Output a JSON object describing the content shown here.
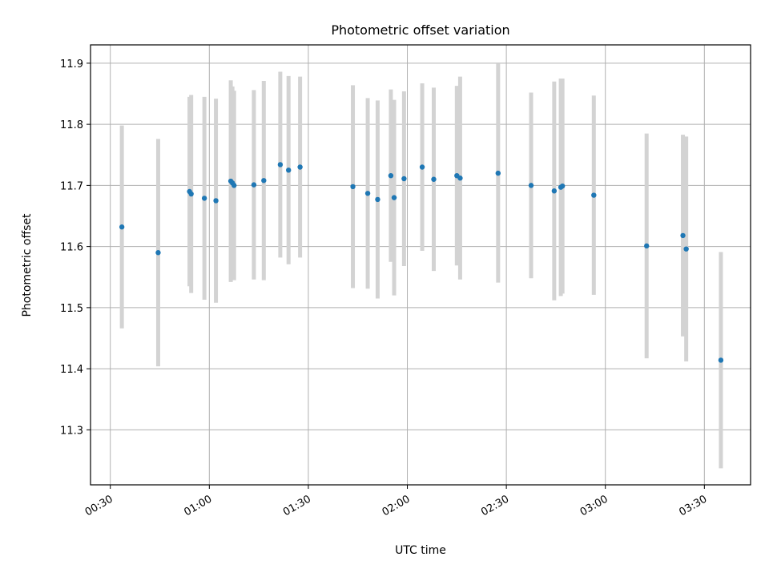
{
  "chart_data": {
    "type": "scatter",
    "title": "Photometric offset variation",
    "xlabel": "UTC time",
    "ylabel": "Photometric offset",
    "x_ticks": [
      "00:30",
      "01:00",
      "01:30",
      "02:00",
      "02:30",
      "03:00",
      "03:30"
    ],
    "y_ticks": [
      "11.3",
      "11.4",
      "11.5",
      "11.6",
      "11.7",
      "11.8",
      "11.9"
    ],
    "xlim": [
      "00:24",
      "03:44"
    ],
    "ylim": [
      11.21,
      11.93
    ],
    "grid": true,
    "colors": {
      "points": "#1f77b4",
      "error_bars": "#d3d3d3"
    },
    "series": [
      {
        "points": [
          {
            "x": "00:33:30",
            "y": 11.632,
            "err": 0.166
          },
          {
            "x": "00:44:30",
            "y": 11.59,
            "err": 0.186
          },
          {
            "x": "00:54:00",
            "y": 11.69,
            "err": 0.155
          },
          {
            "x": "00:54:30",
            "y": 11.686,
            "err": 0.162
          },
          {
            "x": "00:58:30",
            "y": 11.679,
            "err": 0.166
          },
          {
            "x": "01:02:00",
            "y": 11.675,
            "err": 0.167
          },
          {
            "x": "01:06:30",
            "y": 11.707,
            "err": 0.165
          },
          {
            "x": "01:07:00",
            "y": 11.704,
            "err": 0.158
          },
          {
            "x": "01:07:30",
            "y": 11.7,
            "err": 0.155
          },
          {
            "x": "01:13:30",
            "y": 11.701,
            "err": 0.155
          },
          {
            "x": "01:16:30",
            "y": 11.708,
            "err": 0.163
          },
          {
            "x": "01:21:30",
            "y": 11.734,
            "err": 0.152
          },
          {
            "x": "01:24:00",
            "y": 11.725,
            "err": 0.154
          },
          {
            "x": "01:27:30",
            "y": 11.73,
            "err": 0.148
          },
          {
            "x": "01:43:30",
            "y": 11.698,
            "err": 0.166
          },
          {
            "x": "01:48:00",
            "y": 11.687,
            "err": 0.156
          },
          {
            "x": "01:51:00",
            "y": 11.677,
            "err": 0.162
          },
          {
            "x": "01:55:00",
            "y": 11.716,
            "err": 0.141
          },
          {
            "x": "01:56:00",
            "y": 11.68,
            "err": 0.16
          },
          {
            "x": "01:59:00",
            "y": 11.711,
            "err": 0.143
          },
          {
            "x": "02:04:30",
            "y": 11.73,
            "err": 0.137
          },
          {
            "x": "02:08:00",
            "y": 11.71,
            "err": 0.15
          },
          {
            "x": "02:15:00",
            "y": 11.716,
            "err": 0.147
          },
          {
            "x": "02:16:00",
            "y": 11.712,
            "err": 0.166
          },
          {
            "x": "02:27:30",
            "y": 11.72,
            "err": 0.179
          },
          {
            "x": "02:37:30",
            "y": 11.7,
            "err": 0.152
          },
          {
            "x": "02:44:30",
            "y": 11.691,
            "err": 0.179
          },
          {
            "x": "02:46:30",
            "y": 11.697,
            "err": 0.178
          },
          {
            "x": "02:47:00",
            "y": 11.699,
            "err": 0.176
          },
          {
            "x": "02:56:30",
            "y": 11.684,
            "err": 0.163
          },
          {
            "x": "03:12:30",
            "y": 11.601,
            "err": 0.184
          },
          {
            "x": "03:23:30",
            "y": 11.618,
            "err": 0.165
          },
          {
            "x": "03:24:30",
            "y": 11.596,
            "err": 0.184
          },
          {
            "x": "03:35:00",
            "y": 11.414,
            "err": 0.177
          }
        ]
      }
    ]
  }
}
